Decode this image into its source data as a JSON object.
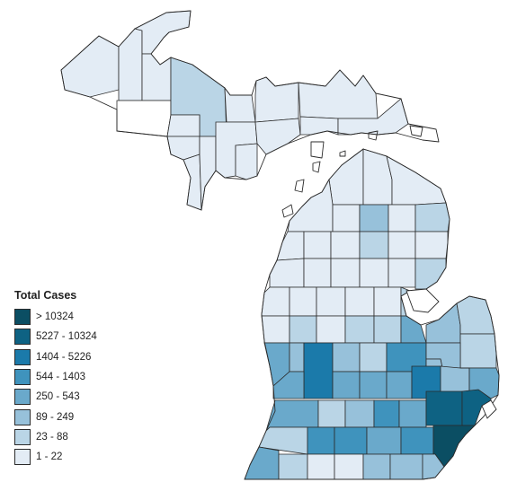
{
  "legend": {
    "title": "Total Cases",
    "items": [
      {
        "label": "> 10324",
        "color": "#0b4e63"
      },
      {
        "label": "5227 - 10324",
        "color": "#0e6283"
      },
      {
        "label": "1404 - 5226",
        "color": "#1b7aaa"
      },
      {
        "label": "544 - 1403",
        "color": "#3f93bd"
      },
      {
        "label": "250 - 543",
        "color": "#6aa9cb"
      },
      {
        "label": "89 - 249",
        "color": "#97c1da"
      },
      {
        "label": "23 - 88",
        "color": "#bad5e6"
      },
      {
        "label": "1 - 22",
        "color": "#e3ecf5"
      }
    ]
  },
  "no_data_color": "#ffffff"
}
